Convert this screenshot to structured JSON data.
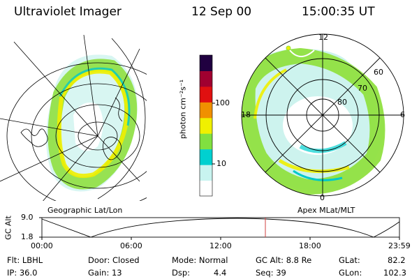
{
  "header": {
    "title": "Ultraviolet Imager",
    "date": "12 Sep 00",
    "time": "15:00:35 UT"
  },
  "left_panel": {
    "caption": "Geographic Lat/Lon"
  },
  "colorbar": {
    "unit": "photon cm⁻²s⁻¹",
    "tick_100": "100",
    "tick_10": "10",
    "colors": [
      "#ffffff",
      "#c8f4f0",
      "#00d0d0",
      "#80e040",
      "#f0f000",
      "#f09000",
      "#e01010",
      "#a00030",
      "#200040"
    ]
  },
  "right_panel": {
    "caption": "Apex MLat/MLT",
    "mlt_labels": {
      "top": "12",
      "left": "18",
      "right": "6",
      "bottom": "0"
    },
    "lat_labels": [
      "60",
      "70",
      "80"
    ]
  },
  "altitude_plot": {
    "ylabel": "GC Alt",
    "y_ticks": [
      "9.0",
      "1.8"
    ],
    "x_ticks": [
      "00:00",
      "06:00",
      "12:00",
      "18:00",
      "23:59"
    ],
    "current_time_fraction": 0.625,
    "marker_color": "#d04040"
  },
  "footer": {
    "filter": "Flt: LBHL",
    "ip": "IP: 36.0",
    "door": "Door: Closed",
    "gain": "Gain: 13",
    "mode": "Mode: Normal",
    "dsp_label": "Dsp:",
    "dsp_value": "4.4",
    "gc_alt": "GC Alt: 8.8 Re",
    "seq": "Seq: 39",
    "glat_label": "GLat:",
    "glat_value": "82.2",
    "glon_label": "GLon:",
    "glon_value": "102.3"
  }
}
